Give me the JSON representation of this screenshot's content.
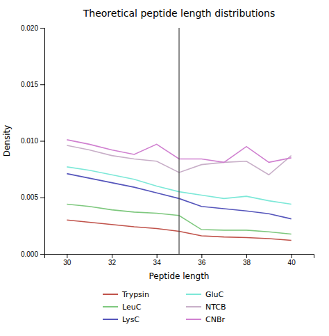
{
  "chart_data": {
    "type": "line",
    "title": "Theoretical peptide length distributions",
    "x_label": "Peptide length",
    "y_label": "Density",
    "xlim": [
      29.0,
      41.0
    ],
    "ylim": [
      0.0,
      0.02
    ],
    "xticks": [
      30,
      32,
      34,
      36,
      38,
      40
    ],
    "yticks": [
      {
        "value": 0.0,
        "label": "0.000"
      },
      0.005,
      {
        "value": 0.01,
        "label": "0.010"
      },
      0.015,
      {
        "value": 0.02,
        "label": "0.020"
      }
    ],
    "vline_x": 35,
    "grid": false,
    "legend": "bottom",
    "x": [
      30,
      31,
      32,
      33,
      34,
      35,
      36,
      37,
      38,
      39,
      40
    ],
    "series": [
      {
        "name": "Trypsin",
        "color": "#c0524a",
        "values": [
          0.003,
          0.0028,
          0.0026,
          0.0024,
          0.00225,
          0.002,
          0.0016,
          0.0015,
          0.00145,
          0.00135,
          0.0012
        ]
      },
      {
        "name": "LeuC",
        "color": "#7ec87e",
        "values": [
          0.0044,
          0.0042,
          0.0039,
          0.0037,
          0.0036,
          0.0034,
          0.00215,
          0.0021,
          0.0021,
          0.00195,
          0.00175
        ]
      },
      {
        "name": "LysC",
        "color": "#5555bb",
        "values": [
          0.0071,
          0.0067,
          0.0063,
          0.0059,
          0.0054,
          0.0049,
          0.0042,
          0.004,
          0.0038,
          0.00355,
          0.0031
        ]
      },
      {
        "name": "GluC",
        "color": "#7de8d8",
        "values": [
          0.0077,
          0.0074,
          0.007,
          0.0066,
          0.006,
          0.0055,
          0.0052,
          0.0049,
          0.0051,
          0.0047,
          0.0044
        ]
      },
      {
        "name": "NTCB",
        "color": "#c8afc8",
        "values": [
          0.0096,
          0.0092,
          0.0087,
          0.0084,
          0.0082,
          0.0072,
          0.0079,
          0.0081,
          0.0082,
          0.007,
          0.0087
        ]
      },
      {
        "name": "CNBr",
        "color": "#d080d0",
        "values": [
          0.0101,
          0.0097,
          0.0092,
          0.0088,
          0.0097,
          0.0084,
          0.0084,
          0.0081,
          0.0095,
          0.0081,
          0.0085
        ]
      }
    ]
  }
}
